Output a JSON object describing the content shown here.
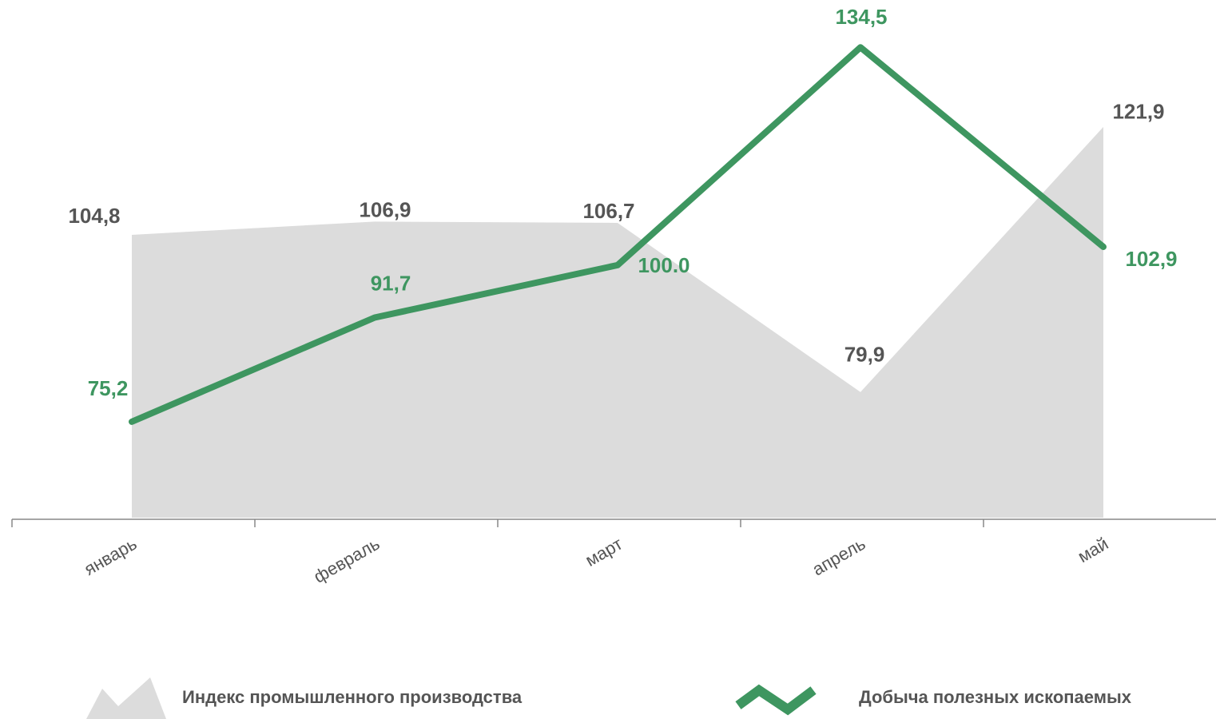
{
  "chart_data": {
    "type": "area-line",
    "categories": [
      "январь",
      "февраль",
      "март",
      "апрель",
      "май"
    ],
    "series": [
      {
        "name": "Индекс промышленного производства",
        "kind": "area",
        "color": "#dcdcdc",
        "values": [
          104.8,
          106.9,
          106.7,
          79.9,
          121.9
        ],
        "value_labels": [
          "104,8",
          "106,9",
          "106,7",
          "79,9",
          "121,9"
        ]
      },
      {
        "name": "Добыча полезных ископаемых",
        "kind": "line",
        "color": "#3e9660",
        "values": [
          75.2,
          91.7,
          100.0,
          134.5,
          102.9
        ],
        "value_labels": [
          "75,2",
          "91,7",
          "100.0",
          "134,5",
          "102,9"
        ]
      }
    ],
    "ylim": [
      60,
      142
    ],
    "legend": "bottom"
  }
}
